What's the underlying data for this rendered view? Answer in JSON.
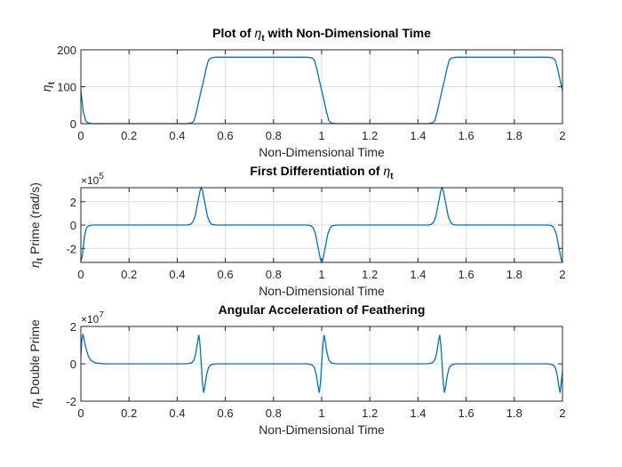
{
  "figure": {
    "background": "#ffffff",
    "series_color": "#0072BD"
  },
  "chart_data": [
    {
      "type": "line",
      "title": "Plot of η_t with Non-Dimensional Time",
      "title_parts": {
        "pre": "Plot of ",
        "sym": "η",
        "sub": "t",
        "post": " with Non-Dimensional Time"
      },
      "xlabel": "Non-Dimensional Time",
      "ylabel": "η_t",
      "ylabel_parts": {
        "pre": "",
        "sym": "η",
        "sub": "t",
        "post": ""
      },
      "xlim": [
        0,
        2
      ],
      "ylim": [
        0,
        200
      ],
      "xticks": [
        "0",
        "0.2",
        "0.4",
        "0.6",
        "0.8",
        "1",
        "1.2",
        "1.4",
        "1.6",
        "1.8",
        "2"
      ],
      "yticks": [
        "0",
        "100",
        "200"
      ],
      "ytick_values": [
        0,
        100,
        200
      ],
      "multiplier": "",
      "grid": true,
      "series": [
        {
          "x": [
            0,
            0.01,
            0.02,
            0.03,
            0.05,
            0.1,
            0.2,
            0.3,
            0.4,
            0.44,
            0.46,
            0.47,
            0.48,
            0.49,
            0.5,
            0.51,
            0.52,
            0.53,
            0.54,
            0.56,
            0.6,
            0.7,
            0.8,
            0.9,
            0.94,
            0.96,
            0.97,
            0.98,
            0.99,
            1.0,
            1.01,
            1.02,
            1.03,
            1.04,
            1.06,
            1.1,
            1.2,
            1.3,
            1.4,
            1.44,
            1.46,
            1.47,
            1.48,
            1.49,
            1.5,
            1.51,
            1.52,
            1.53,
            1.54,
            1.56,
            1.6,
            1.7,
            1.8,
            1.9,
            1.94,
            1.96,
            1.97,
            1.98,
            1.99,
            2.0
          ],
          "y": [
            90,
            32,
            8,
            2,
            0,
            0,
            0,
            0,
            0,
            0,
            2,
            8,
            32,
            62,
            90,
            118,
            148,
            172,
            178,
            180,
            180,
            180,
            180,
            180,
            180,
            178,
            172,
            148,
            118,
            90,
            62,
            32,
            8,
            2,
            0,
            0,
            0,
            0,
            0,
            0,
            2,
            8,
            32,
            62,
            90,
            118,
            148,
            172,
            178,
            180,
            180,
            180,
            180,
            180,
            180,
            178,
            172,
            148,
            118,
            90
          ]
        }
      ]
    },
    {
      "type": "line",
      "title": "First Differentiation of η_t",
      "title_parts": {
        "pre": "First Differentiation of ",
        "sym": "η",
        "sub": "t",
        "post": ""
      },
      "xlabel": "Non-Dimensional Time",
      "ylabel": "η_t Prime (rad/s)",
      "ylabel_parts": {
        "pre": "",
        "sym": "η",
        "sub": "t",
        "post": " Prime (rad/s)"
      },
      "xlim": [
        0,
        2
      ],
      "ylim": [
        -3.2,
        3.2
      ],
      "xticks": [
        "0",
        "0.2",
        "0.4",
        "0.6",
        "0.8",
        "1",
        "1.2",
        "1.4",
        "1.6",
        "1.8",
        "2"
      ],
      "yticks": [
        "-2",
        "0",
        "2"
      ],
      "ytick_values": [
        -2,
        0,
        2
      ],
      "multiplier": "×10",
      "multiplier_exp": "5",
      "grid": true,
      "series": [
        {
          "x": [
            0,
            0.005,
            0.01,
            0.015,
            0.02,
            0.025,
            0.03,
            0.04,
            0.05,
            0.1,
            0.3,
            0.44,
            0.455,
            0.465,
            0.475,
            0.485,
            0.495,
            0.5,
            0.505,
            0.515,
            0.525,
            0.535,
            0.545,
            0.56,
            0.7,
            0.9,
            0.94,
            0.955,
            0.965,
            0.975,
            0.985,
            0.995,
            1.0,
            1.005,
            1.015,
            1.025,
            1.035,
            1.045,
            1.06,
            1.2,
            1.44,
            1.455,
            1.465,
            1.475,
            1.485,
            1.495,
            1.5,
            1.505,
            1.515,
            1.525,
            1.535,
            1.545,
            1.56,
            1.7,
            1.94,
            1.955,
            1.965,
            1.975,
            1.985,
            1.995,
            2.0
          ],
          "y": [
            -3.1,
            -2.8,
            -1.9,
            -1.0,
            -0.5,
            -0.22,
            -0.1,
            -0.02,
            0,
            0,
            0,
            0,
            0.05,
            0.25,
            0.8,
            1.9,
            2.95,
            3.2,
            2.95,
            1.9,
            0.8,
            0.25,
            0.05,
            0,
            0,
            0,
            0,
            -0.05,
            -0.25,
            -0.8,
            -1.9,
            -2.95,
            -3.2,
            -2.95,
            -1.9,
            -0.8,
            -0.25,
            -0.05,
            0,
            0,
            0,
            0.05,
            0.25,
            0.8,
            1.9,
            2.95,
            3.2,
            2.95,
            1.9,
            0.8,
            0.25,
            0.05,
            0,
            0,
            0,
            -0.05,
            -0.25,
            -0.8,
            -1.9,
            -2.95,
            -3.2
          ]
        }
      ]
    },
    {
      "type": "line",
      "title": "Angular Acceleration of Feathering",
      "title_parts": {
        "pre": "Angular Acceleration of Feathering",
        "sym": "",
        "sub": "",
        "post": ""
      },
      "xlabel": "Non-Dimensional Time",
      "ylabel": "η_t Double Prime",
      "ylabel_parts": {
        "pre": "",
        "sym": "η",
        "sub": "t",
        "post": " Double Prime"
      },
      "xlim": [
        0,
        2
      ],
      "ylim": [
        -2,
        2
      ],
      "xticks": [
        "0",
        "0.2",
        "0.4",
        "0.6",
        "0.8",
        "1",
        "1.2",
        "1.4",
        "1.6",
        "1.8",
        "2"
      ],
      "yticks": [
        "-2",
        "0",
        "2"
      ],
      "ytick_values": [
        -2,
        0,
        2
      ],
      "multiplier": "×10",
      "multiplier_exp": "7",
      "grid": true,
      "series": [
        {
          "x": [
            0,
            0.004,
            0.008,
            0.012,
            0.02,
            0.03,
            0.04,
            0.06,
            0.1,
            0.3,
            0.44,
            0.46,
            0.47,
            0.478,
            0.485,
            0.49,
            0.495,
            0.5,
            0.505,
            0.51,
            0.515,
            0.522,
            0.53,
            0.54,
            0.56,
            0.7,
            0.9,
            0.94,
            0.96,
            0.97,
            0.978,
            0.985,
            0.99,
            0.995,
            1.0,
            1.005,
            1.01,
            1.015,
            1.022,
            1.03,
            1.04,
            1.06,
            1.2,
            1.44,
            1.46,
            1.47,
            1.478,
            1.485,
            1.49,
            1.495,
            1.5,
            1.505,
            1.51,
            1.515,
            1.522,
            1.53,
            1.54,
            1.56,
            1.7,
            1.94,
            1.96,
            1.97,
            1.978,
            1.985,
            1.99,
            1.995,
            2.0
          ],
          "y": [
            0.4,
            1.3,
            1.55,
            1.4,
            0.9,
            0.45,
            0.2,
            0.05,
            0,
            0,
            0,
            0.05,
            0.2,
            0.6,
            1.2,
            1.55,
            1.0,
            0,
            -1.0,
            -1.55,
            -1.2,
            -0.6,
            -0.2,
            -0.05,
            0,
            0,
            0,
            0,
            -0.05,
            -0.2,
            -0.6,
            -1.2,
            -1.55,
            -1.0,
            0,
            1.0,
            1.55,
            1.2,
            0.6,
            0.2,
            0.05,
            0,
            0,
            0,
            0.05,
            0.2,
            0.6,
            1.2,
            1.55,
            1.0,
            0,
            -1.0,
            -1.55,
            -1.2,
            -0.6,
            -0.2,
            -0.05,
            0,
            0,
            0,
            -0.05,
            -0.2,
            -0.6,
            -1.2,
            -1.55,
            -1.0,
            -0.4
          ]
        }
      ]
    }
  ]
}
